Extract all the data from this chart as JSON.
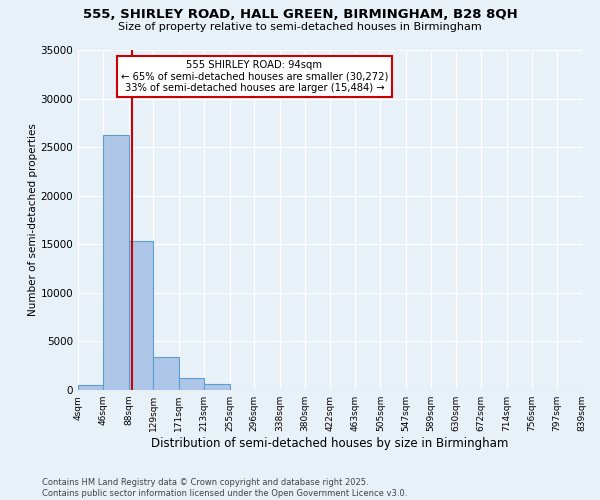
{
  "title1": "555, SHIRLEY ROAD, HALL GREEN, BIRMINGHAM, B28 8QH",
  "title2": "Size of property relative to semi-detached houses in Birmingham",
  "xlabel": "Distribution of semi-detached houses by size in Birmingham",
  "ylabel": "Number of semi-detached properties",
  "bin_edges": [
    4,
    46,
    88,
    129,
    171,
    213,
    255,
    296,
    338,
    380,
    422,
    463,
    505,
    547,
    589,
    630,
    672,
    714,
    756,
    797,
    839
  ],
  "bin_labels": [
    "4sqm",
    "46sqm",
    "88sqm",
    "129sqm",
    "171sqm",
    "213sqm",
    "255sqm",
    "296sqm",
    "338sqm",
    "380sqm",
    "422sqm",
    "463sqm",
    "505sqm",
    "547sqm",
    "589sqm",
    "630sqm",
    "672sqm",
    "714sqm",
    "756sqm",
    "797sqm",
    "839sqm"
  ],
  "bar_values": [
    500,
    26200,
    15300,
    3400,
    1200,
    650,
    0,
    0,
    0,
    0,
    0,
    0,
    0,
    0,
    0,
    0,
    0,
    0,
    0,
    0
  ],
  "bar_color": "#aec6e8",
  "bar_edge_color": "#5a9fd4",
  "bg_color": "#e8f0f8",
  "grid_color": "#ffffff",
  "vline_x": 94,
  "vline_color": "#cc0000",
  "annotation_text": "555 SHIRLEY ROAD: 94sqm\n← 65% of semi-detached houses are smaller (30,272)\n33% of semi-detached houses are larger (15,484) →",
  "annotation_box_color": "#ffffff",
  "annotation_box_edge": "#cc0000",
  "ylim": [
    0,
    35000
  ],
  "yticks": [
    0,
    5000,
    10000,
    15000,
    20000,
    25000,
    30000,
    35000
  ],
  "property_size": 94,
  "footer1": "Contains HM Land Registry data © Crown copyright and database right 2025.",
  "footer2": "Contains public sector information licensed under the Open Government Licence v3.0."
}
